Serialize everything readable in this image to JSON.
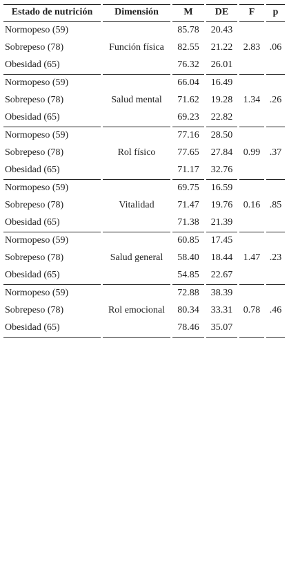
{
  "table": {
    "columns": [
      "Estado de nutrición",
      "Dimensión",
      "M",
      "DE",
      "F",
      "p"
    ],
    "groups": [
      {
        "dimension": "Función física",
        "F": "2.83",
        "p": ".06",
        "rows": [
          [
            "Normopeso (59)",
            "85.78",
            "20.43"
          ],
          [
            "Sobrepeso (78)",
            "82.55",
            "21.22"
          ],
          [
            "Obesidad (65)",
            "76.32",
            "26.01"
          ]
        ]
      },
      {
        "dimension": "Salud mental",
        "F": "1.34",
        "p": ".26",
        "rows": [
          [
            "Normopeso (59)",
            "66.04",
            "16.49"
          ],
          [
            "Sobrepeso (78)",
            "71.62",
            "19.28"
          ],
          [
            "Obesidad (65)",
            "69.23",
            "22.82"
          ]
        ]
      },
      {
        "dimension": "Rol físico",
        "F": "0.99",
        "p": ".37",
        "rows": [
          [
            "Normopeso (59)",
            "77.16",
            "28.50"
          ],
          [
            "Sobrepeso (78)",
            "77.65",
            "27.84"
          ],
          [
            "Obesidad (65)",
            "71.17",
            "32.76"
          ]
        ]
      },
      {
        "dimension": "Vitalidad",
        "F": "0.16",
        "p": ".85",
        "rows": [
          [
            "Normopeso (59)",
            "69.75",
            "16.59"
          ],
          [
            "Sobrepeso (78)",
            "71.47",
            "19.76"
          ],
          [
            "Obesidad (65)",
            "71.38",
            "21.39"
          ]
        ]
      },
      {
        "dimension": "Salud general",
        "F": "1.47",
        "p": ".23",
        "rows": [
          [
            "Normopeso (59)",
            "60.85",
            "17.45"
          ],
          [
            "Sobrepeso (78)",
            "58.40",
            "18.44"
          ],
          [
            "Obesidad (65)",
            "54.85",
            "22.67"
          ]
        ]
      },
      {
        "dimension": "Rol emocional",
        "F": "0.78",
        "p": ".46",
        "rows": [
          [
            "Normopeso (59)",
            "72.88",
            "38.39"
          ],
          [
            "Sobrepeso (78)",
            "80.34",
            "33.31"
          ],
          [
            "Obesidad (65)",
            "78.46",
            "35.07"
          ]
        ]
      }
    ]
  }
}
